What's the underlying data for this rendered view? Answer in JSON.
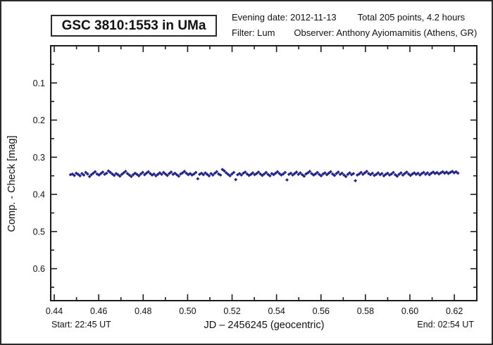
{
  "window": {
    "background": "#ffffff",
    "border_color": "#2a2a2a"
  },
  "header": {
    "title": "GSC 3810:1553 in UMa",
    "evening_date": "Evening date: 2012-11-13",
    "total_points": "Total 205 points, 4.2 hours",
    "filter": "Filter: Lum",
    "observer": "Observer: Anthony Ayiomamitis (Athens, GR)"
  },
  "footer": {
    "start_time": "Start: 22:45 UT",
    "end_time": "End: 02:54 UT"
  },
  "chart_data": {
    "type": "scatter",
    "title": "GSC 3810:1553 in UMa",
    "xlabel": "JD – 2456245  (geocentric)",
    "ylabel": "Comp. - Check [mag]",
    "x_range": [
      0.4384,
      0.6301
    ],
    "y_range": [
      0.0,
      0.686
    ],
    "y_axis_direction": "values increase downward",
    "grid": false,
    "legend": "none",
    "axis_color": "#1c1c1c",
    "x_ticks": [
      0.44,
      0.46,
      0.48,
      0.5,
      0.52,
      0.54,
      0.56,
      0.58,
      0.6,
      0.62
    ],
    "x_minor_ticks": [
      0.45,
      0.47,
      0.49,
      0.51,
      0.53,
      0.55,
      0.57,
      0.59,
      0.61
    ],
    "y_ticks": [
      0.1,
      0.2,
      0.3,
      0.4,
      0.5,
      0.6
    ],
    "y_minor_ticks": [
      0.05,
      0.15,
      0.25,
      0.35,
      0.45,
      0.55,
      0.65
    ],
    "marker": {
      "shape": "diamond",
      "color": "#22228e",
      "size": 4.8
    },
    "n_points": 205,
    "jd_start": 0.4473,
    "jd_step": 0.0008544,
    "mags": [
      0.347,
      0.345,
      0.349,
      0.343,
      0.346,
      0.35,
      0.344,
      0.348,
      0.341,
      0.345,
      0.352,
      0.347,
      0.343,
      0.339,
      0.345,
      0.348,
      0.344,
      0.34,
      0.346,
      0.343,
      0.337,
      0.341,
      0.345,
      0.349,
      0.344,
      0.347,
      0.351,
      0.346,
      0.342,
      0.338,
      0.344,
      0.348,
      0.352,
      0.347,
      0.343,
      0.346,
      0.35,
      0.345,
      0.341,
      0.347,
      0.343,
      0.339,
      0.344,
      0.348,
      0.345,
      0.35,
      0.346,
      0.342,
      0.346,
      0.341,
      0.345,
      0.349,
      0.344,
      0.34,
      0.346,
      0.343,
      0.347,
      0.351,
      0.345,
      0.342,
      0.338,
      0.343,
      0.347,
      0.344,
      0.348,
      0.345,
      0.341,
      0.358,
      0.346,
      0.343,
      0.347,
      0.342,
      0.346,
      0.35,
      0.344,
      0.348,
      0.343,
      0.339,
      0.345,
      0.348,
      0.333,
      0.337,
      0.342,
      0.346,
      0.35,
      0.345,
      0.341,
      0.36,
      0.347,
      0.344,
      0.348,
      0.343,
      0.34,
      0.345,
      0.349,
      0.346,
      0.342,
      0.347,
      0.344,
      0.34,
      0.345,
      0.349,
      0.345,
      0.341,
      0.346,
      0.35,
      0.344,
      0.347,
      0.343,
      0.339,
      0.344,
      0.348,
      0.345,
      0.341,
      0.361,
      0.346,
      0.343,
      0.348,
      0.344,
      0.34,
      0.346,
      0.342,
      0.347,
      0.351,
      0.345,
      0.342,
      0.338,
      0.344,
      0.348,
      0.345,
      0.341,
      0.346,
      0.35,
      0.345,
      0.342,
      0.347,
      0.343,
      0.339,
      0.345,
      0.349,
      0.344,
      0.34,
      0.346,
      0.343,
      0.348,
      0.352,
      0.346,
      0.342,
      0.347,
      0.344,
      0.363,
      0.348,
      0.345,
      0.341,
      0.346,
      0.342,
      0.338,
      0.344,
      0.347,
      0.343,
      0.349,
      0.346,
      0.342,
      0.347,
      0.344,
      0.35,
      0.346,
      0.343,
      0.348,
      0.345,
      0.341,
      0.347,
      0.351,
      0.346,
      0.342,
      0.348,
      0.344,
      0.34,
      0.345,
      0.349,
      0.345,
      0.342,
      0.346,
      0.343,
      0.348,
      0.344,
      0.341,
      0.346,
      0.342,
      0.347,
      0.343,
      0.34,
      0.344,
      0.341,
      0.345,
      0.342,
      0.339,
      0.343,
      0.34,
      0.344,
      0.341,
      0.338,
      0.342,
      0.339,
      0.343
    ]
  }
}
